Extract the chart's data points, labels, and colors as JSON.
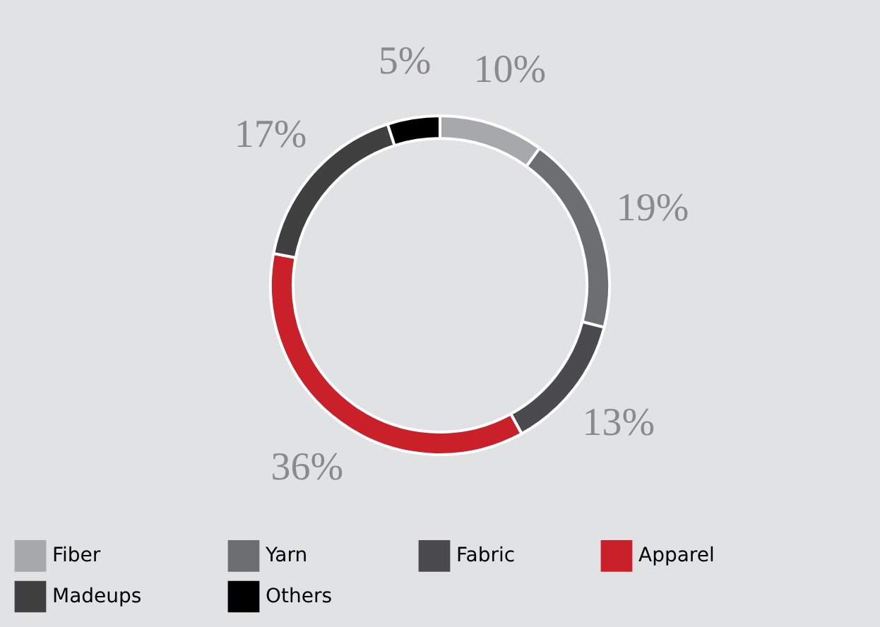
{
  "chart_data": {
    "type": "donut",
    "categories": [
      "Fiber",
      "Yarn",
      "Fabric",
      "Apparel",
      "Madeups",
      "Others"
    ],
    "values": [
      10,
      19,
      13,
      36,
      17,
      5
    ],
    "colors": [
      "#a7a8aa",
      "#6d6e70",
      "#4b4b4d",
      "#c9202a",
      "#404041",
      "#000000"
    ],
    "value_labels": [
      "10%",
      "19%",
      "13%",
      "36%",
      "17%",
      "5%"
    ],
    "legend": "bottom"
  }
}
